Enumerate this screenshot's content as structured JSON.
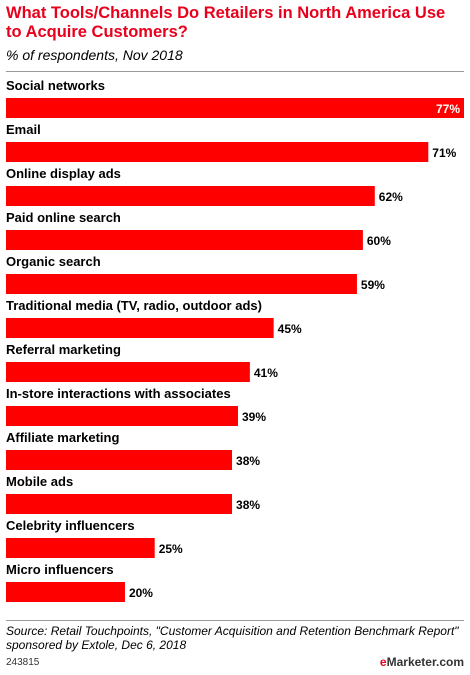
{
  "header": {
    "title": "What Tools/Channels Do Retailers in North America Use to Acquire Customers?",
    "subtitle": "% of respondents, Nov 2018"
  },
  "chart_data": {
    "type": "bar",
    "orientation": "horizontal",
    "categories": [
      "Social networks",
      "Email",
      "Online display ads",
      "Paid online search",
      "Organic search",
      "Traditional media (TV, radio, outdoor ads)",
      "Referral marketing",
      "In-store interactions with associates",
      "Affiliate marketing",
      "Mobile ads",
      "Celebrity influencers",
      "Micro influencers"
    ],
    "values": [
      77,
      71,
      62,
      60,
      59,
      45,
      41,
      39,
      38,
      38,
      25,
      20
    ],
    "value_labels": [
      "77%",
      "71%",
      "62%",
      "60%",
      "59%",
      "45%",
      "41%",
      "39%",
      "38%",
      "38%",
      "25%",
      "20%"
    ],
    "xlim": [
      0,
      77
    ],
    "bar_color": "#ff0000",
    "grid": false
  },
  "footer": {
    "source": "Source: Retail Touchpoints, \"Customer Acquisition and Retention Benchmark Report\" sponsored by Extole, Dec 6, 2018",
    "chart_id": "243815",
    "brand_prefix": "e",
    "brand_rest": "Marketer",
    "brand_suffix": ".com"
  },
  "colors": {
    "title": "#e8001c",
    "bar": "#ff0000"
  }
}
